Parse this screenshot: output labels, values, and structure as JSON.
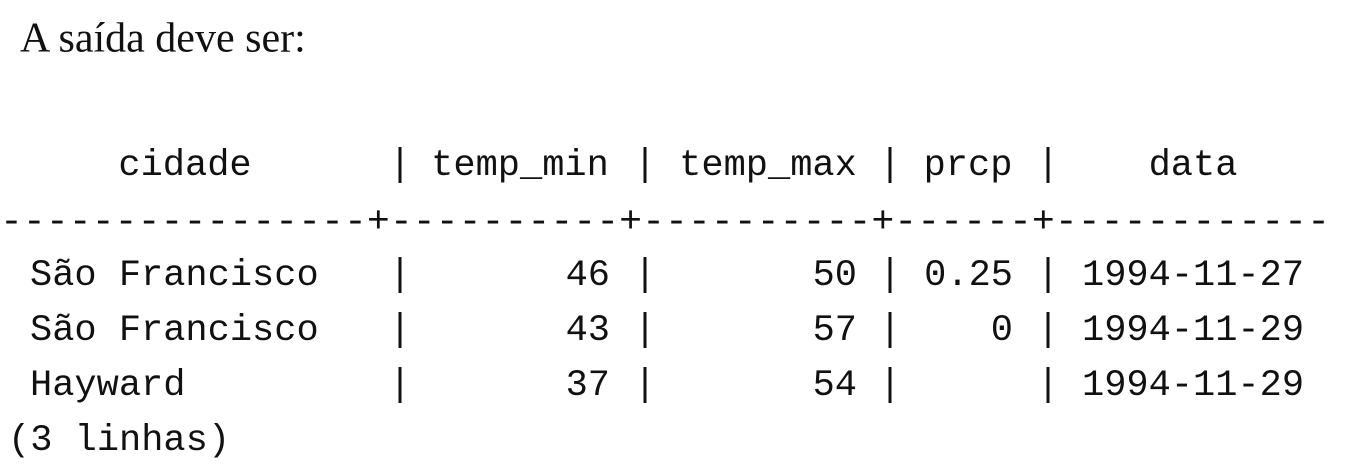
{
  "intro": "A saída deve ser:",
  "table": {
    "header": [
      "cidade",
      "temp_min",
      "temp_max",
      "prcp",
      "data"
    ],
    "separator": "----------------+----------+----------+------+------------",
    "rows": [
      [
        "São Francisco",
        "46",
        "50",
        "0.25",
        "1994-11-27"
      ],
      [
        "São Francisco",
        "43",
        "57",
        "0",
        "1994-11-29"
      ],
      [
        "Hayward",
        "37",
        "54",
        null,
        "1994-11-29"
      ]
    ],
    "footer": "(3 linhas)"
  }
}
